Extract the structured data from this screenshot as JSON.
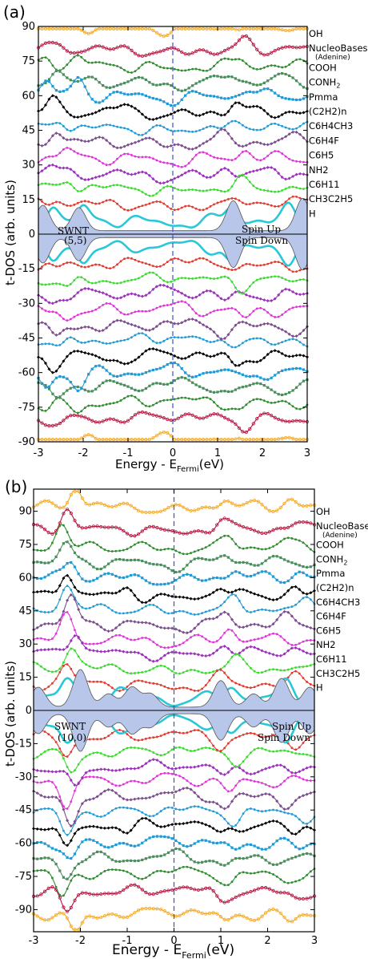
{
  "chart_data": [
    {
      "panel_label": "(a)",
      "type": "line",
      "xlabel_main": "Energy - E",
      "xlabel_sub": "Fermi",
      "xlabel_unit": "(eV)",
      "ylabel": "t-DOS (arb. units)",
      "xlim": [
        -3,
        3
      ],
      "ylim": [
        -90,
        90
      ],
      "xticks": [
        "-3",
        "-2",
        "-1",
        "0",
        "1",
        "2",
        "3"
      ],
      "yticks": [
        "90",
        "75",
        "60",
        "45",
        "30",
        "15",
        "0",
        "-15",
        "-30",
        "-45",
        "-60",
        "-75",
        "-90"
      ],
      "fermi_level": 0,
      "annotations": [
        "SWNT",
        "(5,5)",
        "Spin Up",
        "Spin Down"
      ],
      "series": [
        {
          "name": "OH",
          "name_sub": "",
          "offset": 90,
          "color": "#f5a81f",
          "marker": "circle",
          "peaks": [
            {
              "x": 1.9,
              "h": 4
            },
            {
              "x": 0.5,
              "h": 1.2
            }
          ]
        },
        {
          "name": "NucleoBases",
          "name_sub": "(Adenine)",
          "offset": 80,
          "color": "#b5113d",
          "marker": "circle",
          "peaks": [
            {
              "x": -2.5,
              "h": 3
            },
            {
              "x": 1.6,
              "h": 3.5
            },
            {
              "x": 2.6,
              "h": 2
            }
          ]
        },
        {
          "name": "COOH",
          "name_sub": "",
          "offset": 73,
          "color": "#2e8b2e",
          "marker": "dot",
          "peaks": [
            {
              "x": -2.8,
              "h": 4
            },
            {
              "x": -2.1,
              "h": 4
            },
            {
              "x": 1.5,
              "h": 3
            }
          ]
        },
        {
          "name": "CONH",
          "name_sub": "2",
          "offset": 66,
          "color": "#4b8e5d",
          "marker": "square",
          "peaks": [
            {
              "x": -2.6,
              "h": 5
            },
            {
              "x": 1.3,
              "h": 4
            },
            {
              "x": 2.4,
              "h": 2
            }
          ]
        },
        {
          "name": "Pmma",
          "name_sub": "",
          "offset": 60,
          "color": "#1f9ad6",
          "marker": "square",
          "peaks": [
            {
              "x": -2.8,
              "h": 7
            },
            {
              "x": -2.1,
              "h": 7
            },
            {
              "x": 1.7,
              "h": 3
            }
          ]
        },
        {
          "name": "(C2H2)n",
          "name_sub": "",
          "offset": 53,
          "color": "#000000",
          "marker": "diamond",
          "peaks": [
            {
              "x": -2.7,
              "h": 5
            },
            {
              "x": -1.1,
              "h": 3
            },
            {
              "x": 1.4,
              "h": 4
            }
          ]
        },
        {
          "name": "C6H4CH3",
          "name_sub": "",
          "offset": 46,
          "color": "#1f9ad6",
          "marker": "dot",
          "peaks": [
            {
              "x": -2.5,
              "h": 4
            },
            {
              "x": 0.9,
              "h": 2.5
            },
            {
              "x": 2.2,
              "h": 3
            }
          ]
        },
        {
          "name": "C6H4F",
          "name_sub": "",
          "offset": 40,
          "color": "#7a4c8c",
          "marker": "diamond",
          "peaks": [
            {
              "x": -2.6,
              "h": 5
            },
            {
              "x": 1.1,
              "h": 3
            },
            {
              "x": 2.7,
              "h": 2.5
            }
          ]
        },
        {
          "name": "C6H5",
          "name_sub": "",
          "offset": 33,
          "color": "#e033d9",
          "marker": "dot",
          "peaks": [
            {
              "x": -2.4,
              "h": 4
            },
            {
              "x": 1.6,
              "h": 3.5
            }
          ]
        },
        {
          "name": "NH2",
          "name_sub": "",
          "offset": 26,
          "color": "#9b2fbb",
          "marker": "diamond",
          "peaks": [
            {
              "x": -2.7,
              "h": 4
            },
            {
              "x": 1.2,
              "h": 3
            },
            {
              "x": 2.3,
              "h": 2
            }
          ]
        },
        {
          "name": "C6H11",
          "name_sub": "",
          "offset": 20,
          "color": "#3adb2f",
          "marker": "dot",
          "peaks": [
            {
              "x": -2.3,
              "h": 4
            },
            {
              "x": 1.5,
              "h": 3
            }
          ]
        },
        {
          "name": "CH3C2H5",
          "name_sub": "",
          "offset": 13,
          "color": "#e03a30",
          "marker": "dot",
          "peaks": [
            {
              "x": -2.6,
              "h": 3
            },
            {
              "x": 1.8,
              "h": 2.5
            },
            {
              "x": 2.7,
              "h": 2
            }
          ]
        },
        {
          "name": "H",
          "name_sub": "",
          "offset": 6,
          "color": "#29c8d8",
          "marker": "none",
          "peaks": [
            {
              "x": -2.7,
              "h": 6
            },
            {
              "x": -2.0,
              "h": 5
            },
            {
              "x": 1.3,
              "h": 6
            },
            {
              "x": 2.6,
              "h": 5
            }
          ]
        }
      ],
      "swnt_fill": {
        "color": "#b8c6ea",
        "peaks": [
          {
            "x": -2.9,
            "h": 11
          },
          {
            "x": -2.1,
            "h": 10
          },
          {
            "x": 1.35,
            "h": 13
          },
          {
            "x": 2.9,
            "h": 14
          }
        ]
      }
    },
    {
      "panel_label": "(b)",
      "type": "line",
      "xlabel_main": "Energy - E",
      "xlabel_sub": "Fermi",
      "xlabel_unit": "(eV)",
      "ylabel": "t-DOS (arb. units)",
      "xlim": [
        -3,
        3
      ],
      "ylim": [
        -100,
        100
      ],
      "xticks": [
        "-3",
        "-2",
        "-1",
        "0",
        "1",
        "2",
        "3"
      ],
      "yticks": [
        "90",
        "75",
        "60",
        "45",
        "30",
        "15",
        "0",
        "-15",
        "-30",
        "-45",
        "-60",
        "-75",
        "-90"
      ],
      "fermi_level": 0,
      "annotations": [
        "SWNT",
        "(10,0)",
        "Spin Up",
        "Spin Down"
      ],
      "series": [
        {
          "name": "OH",
          "name_sub": "",
          "offset": 92,
          "color": "#f5a81f",
          "marker": "circle",
          "peaks": [
            {
              "x": -2.1,
              "h": 10
            },
            {
              "x": 1.1,
              "h": 4
            },
            {
              "x": 2.5,
              "h": 4
            }
          ]
        },
        {
          "name": "NucleoBases",
          "name_sub": "(Adenine)",
          "offset": 82,
          "color": "#b5113d",
          "marker": "circle",
          "peaks": [
            {
              "x": -2.3,
              "h": 9
            },
            {
              "x": 1.0,
              "h": 4
            },
            {
              "x": 2.6,
              "h": 3
            }
          ]
        },
        {
          "name": "COOH",
          "name_sub": "",
          "offset": 74,
          "color": "#2e8b2e",
          "marker": "dot",
          "peaks": [
            {
              "x": -2.4,
              "h": 9
            },
            {
              "x": 1.2,
              "h": 4
            },
            {
              "x": 2.4,
              "h": 3
            }
          ]
        },
        {
          "name": "CONH",
          "name_sub": "2",
          "offset": 67,
          "color": "#4b8e5d",
          "marker": "square",
          "peaks": [
            {
              "x": -2.3,
              "h": 8
            },
            {
              "x": 1.1,
              "h": 4
            }
          ]
        },
        {
          "name": "Pmma",
          "name_sub": "",
          "offset": 60,
          "color": "#1f9ad6",
          "marker": "square",
          "peaks": [
            {
              "x": -2.2,
              "h": 8
            },
            {
              "x": 1.3,
              "h": 4
            },
            {
              "x": 2.7,
              "h": 3
            }
          ]
        },
        {
          "name": "(C2H2)n",
          "name_sub": "",
          "offset": 52,
          "color": "#000000",
          "marker": "diamond",
          "peaks": [
            {
              "x": -2.3,
              "h": 12
            },
            {
              "x": -1.0,
              "h": 3
            },
            {
              "x": 1.0,
              "h": 5
            },
            {
              "x": 2.6,
              "h": 4
            }
          ]
        },
        {
          "name": "C6H4CH3",
          "name_sub": "",
          "offset": 46,
          "color": "#1f9ad6",
          "marker": "dot",
          "peaks": [
            {
              "x": -2.3,
              "h": 10
            },
            {
              "x": 1.3,
              "h": 4
            },
            {
              "x": 2.8,
              "h": 3
            }
          ]
        },
        {
          "name": "C6H4F",
          "name_sub": "",
          "offset": 39,
          "color": "#7a4c8c",
          "marker": "diamond",
          "peaks": [
            {
              "x": -2.2,
              "h": 12
            },
            {
              "x": 1.1,
              "h": 5
            },
            {
              "x": 2.4,
              "h": 3
            }
          ]
        },
        {
          "name": "C6H5",
          "name_sub": "",
          "offset": 32,
          "color": "#e033d9",
          "marker": "dot",
          "peaks": [
            {
              "x": -2.3,
              "h": 10
            },
            {
              "x": 1.2,
              "h": 5
            }
          ]
        },
        {
          "name": "NH2",
          "name_sub": "",
          "offset": 26,
          "color": "#9b2fbb",
          "marker": "diamond",
          "peaks": [
            {
              "x": -2.1,
              "h": 11
            },
            {
              "x": 1.1,
              "h": 4
            },
            {
              "x": 2.5,
              "h": 3
            }
          ]
        },
        {
          "name": "C6H11",
          "name_sub": "",
          "offset": 19,
          "color": "#3adb2f",
          "marker": "dot",
          "peaks": [
            {
              "x": -2.2,
              "h": 10
            },
            {
              "x": 1.3,
              "h": 4
            }
          ]
        },
        {
          "name": "CH3C2H5",
          "name_sub": "",
          "offset": 12,
          "color": "#e03a30",
          "marker": "dot",
          "peaks": [
            {
              "x": -2.3,
              "h": 9
            },
            {
              "x": 1.0,
              "h": 4
            },
            {
              "x": 2.6,
              "h": 3
            }
          ]
        },
        {
          "name": "H",
          "name_sub": "",
          "offset": 6,
          "color": "#29c8d8",
          "marker": "none",
          "peaks": [
            {
              "x": -2.3,
              "h": 8
            },
            {
              "x": -1.2,
              "h": 4
            },
            {
              "x": 1.2,
              "h": 5
            },
            {
              "x": 2.4,
              "h": 6
            }
          ]
        }
      ],
      "swnt_fill": {
        "color": "#b8c6ea",
        "peaks": [
          {
            "x": -2.9,
            "h": 9
          },
          {
            "x": -2.0,
            "h": 17
          },
          {
            "x": -1.4,
            "h": 6
          },
          {
            "x": -0.9,
            "h": 9
          },
          {
            "x": -0.5,
            "h": 6
          },
          {
            "x": 1.0,
            "h": 12
          },
          {
            "x": 1.7,
            "h": 6
          },
          {
            "x": 2.3,
            "h": 13
          },
          {
            "x": 2.9,
            "h": 9
          }
        ]
      }
    }
  ]
}
